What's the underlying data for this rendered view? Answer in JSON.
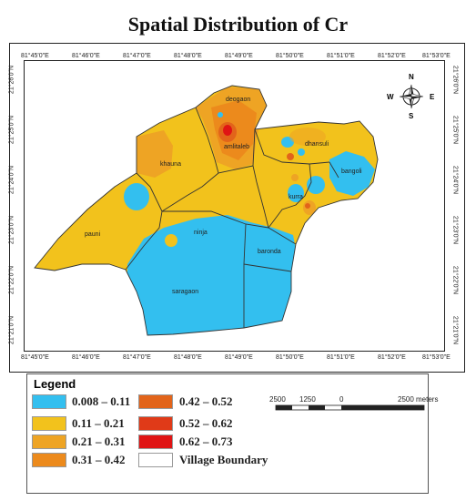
{
  "title": "Spatial Distribution of Cr",
  "lon_ticks": [
    "81°45'0\"E",
    "81°46'0\"E",
    "81°47'0\"E",
    "81°48'0\"E",
    "81°49'0\"E",
    "81°50'0\"E",
    "81°51'0\"E",
    "81°52'0\"E",
    "81°53'0\"E"
  ],
  "lat_ticks": [
    "21°26'0\"N",
    "21°25'0\"N",
    "21°24'0\"N",
    "21°23'0\"N",
    "21°22'0\"N",
    "21°21'0\"N"
  ],
  "villages": [
    "deogaon",
    "amlitaleb",
    "dhansuli",
    "khauna",
    "bangoli",
    "kurra",
    "pauni",
    "ninja",
    "baronda",
    "saragaon"
  ],
  "compass": {
    "n": "N",
    "s": "S",
    "e": "E",
    "w": "W"
  },
  "legend": {
    "title": "Legend",
    "items": [
      {
        "label": "0.008 – 0.11",
        "color": "#33bfef"
      },
      {
        "label": "0.11 – 0.21",
        "color": "#f2c21c"
      },
      {
        "label": "0.21 – 0.31",
        "color": "#eea424"
      },
      {
        "label": "0.31 – 0.42",
        "color": "#ec8a1c"
      },
      {
        "label": "0.42 – 0.52",
        "color": "#e2641a"
      },
      {
        "label": "0.52 – 0.62",
        "color": "#e03a18"
      },
      {
        "label": "0.62 – 0.73",
        "color": "#e01414"
      },
      {
        "label": "Village Boundary",
        "color": "#ffffff"
      }
    ]
  },
  "scalebar": {
    "l0": "2500",
    "l1": "1250",
    "l2": "0",
    "l3": "2500 meters"
  }
}
